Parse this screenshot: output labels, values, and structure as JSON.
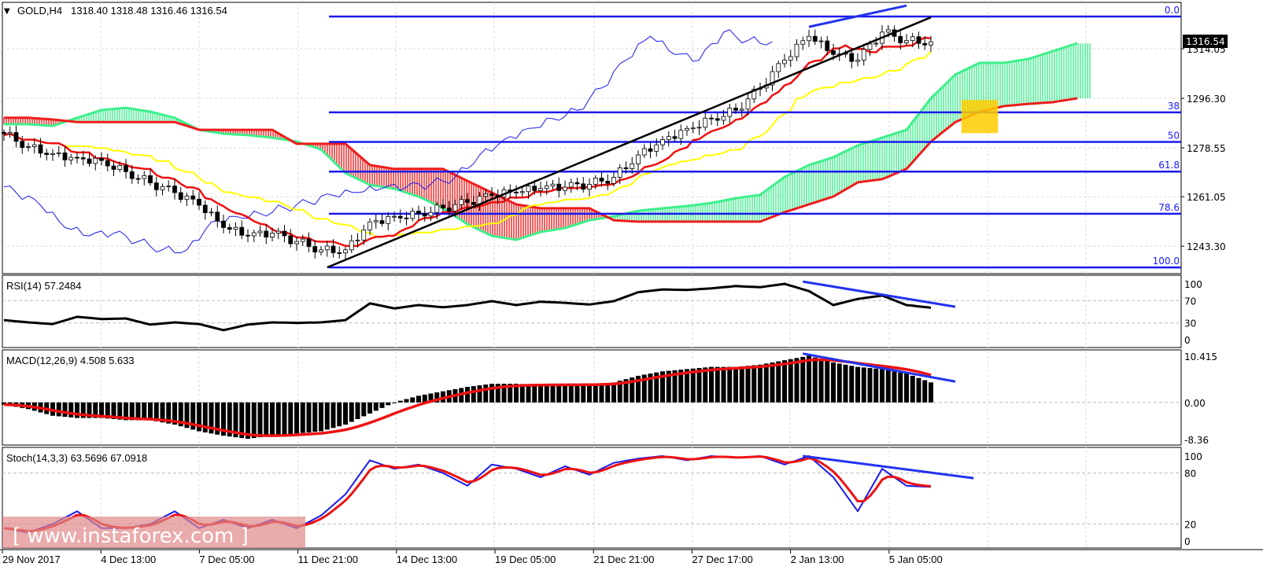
{
  "header": {
    "symbol": "GOLD,H4",
    "ohlc": "1318.40 1318.48 1316.46 1316.54"
  },
  "watermark": "[ www.instaforex.com ]",
  "colors": {
    "bull_cloud": "#3cf08a",
    "bear_cloud": "#ee1c1c",
    "tenkan": "#ee1111",
    "kijun": "#ffff00",
    "chikou": "#1a1aee",
    "fib": "#1a1aee",
    "trendline": "#000000",
    "target_zone": "#ffcc00",
    "divergence": "#2233ee"
  },
  "chart_data": [
    {
      "type": "candlestick",
      "title": "GOLD,H4",
      "bar_step": 4,
      "close": [
        1283.6,
        1279,
        1276.5,
        1275,
        1274,
        1270,
        1266,
        1262.5,
        1258,
        1250,
        1247,
        1248,
        1245,
        1242,
        1242,
        1252,
        1254,
        1255,
        1257,
        1259,
        1261.5,
        1262.5,
        1264,
        1264.5,
        1265.5,
        1268,
        1276,
        1281.5,
        1285.5,
        1289,
        1292,
        1300,
        1310,
        1318.5,
        1312,
        1310,
        1320,
        1317,
        1316.54
      ],
      "ichimoku": {
        "senkou_a": [
          1287.0,
          1287.0,
          1286.4,
          1289.3,
          1292.1,
          1292.9,
          1291.5,
          1289.3,
          1285.0,
          1283.6,
          1283.1,
          1282.2,
          1280.8,
          1278.0,
          1269.5,
          1265.3,
          1263.9,
          1261.1,
          1256.9,
          1251.2,
          1247.0,
          1245.6,
          1248.4,
          1249.8,
          1252.6,
          1254.0,
          1256.0,
          1256.9,
          1257.7,
          1258.8,
          1260.5,
          1261.7,
          1268.1,
          1272.4,
          1275.2,
          1279.4,
          1282.2,
          1285.0,
          1296.3,
          1304.8,
          1309.0,
          1309.0,
          1310.4,
          1313.2,
          1316.0
        ],
        "senkou_b": [
          1289.3,
          1289.3,
          1288.7,
          1287.8,
          1287.8,
          1287.8,
          1287.8,
          1287.8,
          1285.0,
          1285.0,
          1285.0,
          1285.0,
          1280.0,
          1280.0,
          1280.0,
          1272.4,
          1271.0,
          1271.0,
          1271.0,
          1266.7,
          1262.5,
          1258.3,
          1256.9,
          1256.9,
          1256.9,
          1252.6,
          1252.1,
          1252.1,
          1252.1,
          1252.1,
          1252.1,
          1252.1,
          1255.5,
          1258.3,
          1261.1,
          1266.2,
          1267.3,
          1271.0,
          1280.8,
          1287.8,
          1291.5,
          1293.5,
          1294.3,
          1294.9,
          1296.3
        ]
      },
      "y_ticks": [
        "1314.05",
        "1296.30",
        "1278.55",
        "1261.05",
        "1243.30"
      ],
      "current_price": "1316.54",
      "fibonacci": {
        "high": 1325.6,
        "low": 1235.7,
        "levels": [
          {
            "label": "0.0",
            "ratio": 0
          },
          {
            "label": "38",
            "ratio": 0.382
          },
          {
            "label": "50",
            "ratio": 0.5
          },
          {
            "label": "61.8",
            "ratio": 0.618
          },
          {
            "label": "78.6",
            "ratio": 0.786
          },
          {
            "label": "100.0",
            "ratio": 1
          }
        ]
      },
      "trendline": {
        "from": {
          "bar": 53,
          "price": 1235.7
        },
        "to": {
          "bar": 152,
          "price": 1325.3
        }
      },
      "divergence_line": {
        "from": {
          "bar": 132,
          "price": 1321.9
        },
        "to": {
          "bar": 148,
          "price": 1329.5
        }
      },
      "target_zone": {
        "from_bar": 157,
        "to_bar": 163,
        "price_high": 1295.7,
        "price_low": 1283.8
      },
      "x_tick_labels": [
        "29 Nov 2017",
        "4 Dec 13:00",
        "7 Dec 05:00",
        "11 Dec 21:00",
        "14 Dec 13:00",
        "19 Dec 05:00",
        "21 Dec 21:00",
        "27 Dec 17:00",
        "2 Jan 13:00",
        "5 Jan 05:00"
      ]
    },
    {
      "type": "line",
      "title": "RSI(14) 57.2484",
      "ylim": [
        0,
        100
      ],
      "y_ticks": [
        "100",
        "70",
        "30",
        "0"
      ],
      "levels": [
        70,
        30
      ],
      "values": [
        35,
        31,
        28,
        41,
        37,
        38,
        27,
        31,
        28,
        17,
        27,
        31,
        30,
        31,
        35,
        65,
        56,
        62,
        58,
        62,
        69,
        62,
        68,
        66,
        63,
        69,
        85,
        90,
        89,
        92,
        96,
        94,
        100,
        87,
        62,
        73,
        79,
        62,
        57.25
      ],
      "divergence_line": {
        "from": {
          "bar": 131,
          "value": 104
        },
        "to": {
          "bar": 156,
          "value": 59
        }
      }
    },
    {
      "type": "bar",
      "title": "MACD(12,26,9) 4.508 5.633",
      "ylim": [
        -8.36,
        10.415
      ],
      "y_ticks": [
        "10.415",
        "0.00",
        "-8.36"
      ],
      "values": [
        -0.5,
        -1.5,
        -3,
        -3.5,
        -3.5,
        -4,
        -4,
        -5,
        -6.5,
        -7.5,
        -8.2,
        -7.5,
        -7,
        -6.5,
        -5,
        -2.5,
        0,
        1.5,
        2.5,
        3.5,
        4.2,
        4.2,
        4,
        4,
        4,
        4.5,
        6,
        7,
        7.5,
        8,
        8,
        8.5,
        9.5,
        10.5,
        9,
        8,
        7.5,
        6.5,
        4.508
      ],
      "signal_last": 5.633,
      "divergence_line": {
        "from": {
          "bar": 131,
          "value": 11
        },
        "to": {
          "bar": 156,
          "value": 4.7
        }
      }
    },
    {
      "type": "line",
      "title": "Stoch(14,3,3) 63.5696 67.0918",
      "ylim": [
        0,
        100
      ],
      "y_ticks": [
        "100",
        "80",
        "20",
        "0"
      ],
      "levels": [
        80,
        20
      ],
      "values": [
        15,
        10,
        20,
        35,
        15,
        15,
        20,
        35,
        15,
        25,
        15,
        25,
        15,
        30,
        55,
        95,
        85,
        90,
        80,
        65,
        90,
        85,
        75,
        88,
        78,
        92,
        97,
        100,
        95,
        100,
        98,
        100,
        90,
        100,
        75,
        35,
        85,
        65,
        63.57
      ],
      "signal_last": 67.09,
      "divergence_line": {
        "from": {
          "bar": 131,
          "value": 100
        },
        "to": {
          "bar": 159,
          "value": 74
        }
      }
    }
  ]
}
